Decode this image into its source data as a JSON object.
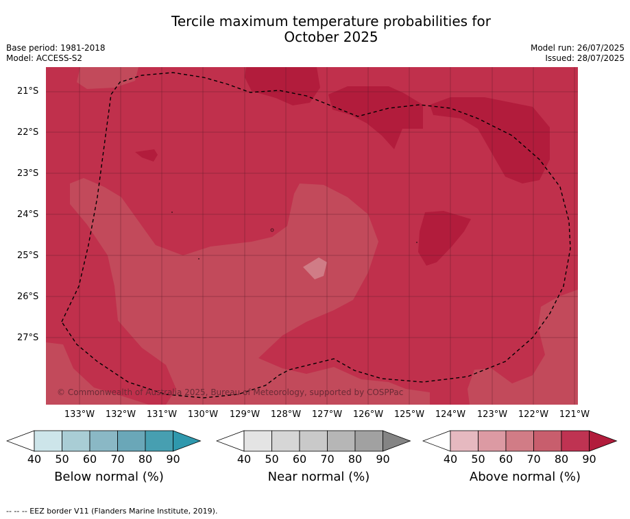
{
  "header": {
    "title_line1": "Tercile maximum temperature probabilities for",
    "title_line2": "October 2025",
    "base_period": "Base period: 1981-2018",
    "model": "Model: ACCESS-S2",
    "model_run": "Model run: 26/07/2025",
    "issued": "Issued: 28/07/2025"
  },
  "map": {
    "lat_labels": [
      "21°S",
      "22°S",
      "23°S",
      "24°S",
      "25°S",
      "26°S",
      "27°S"
    ],
    "lon_labels": [
      "133°W",
      "132°W",
      "131°W",
      "130°W",
      "129°W",
      "128°W",
      "127°W",
      "126°W",
      "125°W",
      "124°W",
      "123°W",
      "122°W",
      "121°W"
    ],
    "copyright": "© Commonwealth of Australia 2025, Bureau of Meteorology, supported by COSPPac",
    "colors": {
      "above_80": "#c0304c",
      "above_70": "#c24a5b",
      "above_90": "#b21c3c",
      "above_60": "#d07c86",
      "eez_line": "#000000"
    }
  },
  "legends": [
    {
      "caption": "Below normal (%)",
      "ticks": [
        "40",
        "50",
        "60",
        "70",
        "80",
        "90"
      ],
      "colors": [
        "#cde5ea",
        "#a9cdd5",
        "#8ab8c5",
        "#6aa7b8",
        "#479fb1",
        "#2f98ad"
      ]
    },
    {
      "caption": "Near normal (%)",
      "ticks": [
        "40",
        "50",
        "60",
        "70",
        "80",
        "90"
      ],
      "colors": [
        "#e4e4e4",
        "#d6d6d6",
        "#c9c9c9",
        "#b6b6b6",
        "#a1a1a1",
        "#848484"
      ]
    },
    {
      "caption": "Above normal (%)",
      "ticks": [
        "40",
        "50",
        "60",
        "70",
        "80",
        "90"
      ],
      "colors": [
        "#e6b9c0",
        "#dc9aa3",
        "#d17c86",
        "#c85e6d",
        "#bf3352",
        "#b21c3c"
      ]
    }
  ],
  "footer": {
    "source": "--  --  -- EEZ border V11 (Flanders Marine Institute, 2019)."
  }
}
